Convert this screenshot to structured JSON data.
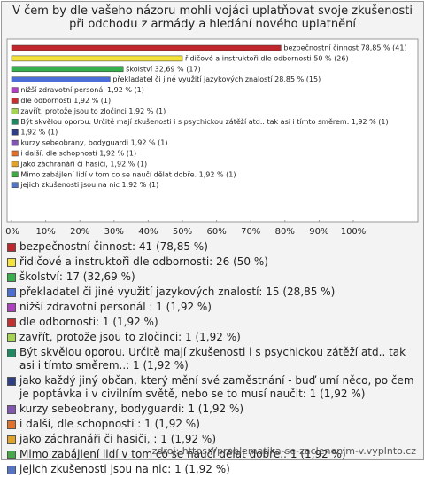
{
  "chart_data": {
    "type": "bar",
    "orientation": "horizontal",
    "title": "V čem by dle vašeho názoru mohli vojáci uplatňovat svoje zkušenosti při odchodu z armády a hledání nového uplatnění",
    "values": [
      78.85,
      50,
      32.69,
      28.85,
      1.92,
      1.92,
      1.92,
      1.92,
      1.92,
      1.92,
      1.92,
      1.92,
      1.92,
      1.92
    ],
    "value_labels": [
      "bezpečnostní činnost 78,85 % (41)",
      "řidičové a instruktoři dle odbornosti 50 % (26)",
      "školství 32,69 % (17)",
      "překladatel či jiné využití jazykových znalostí 28,85 % (15)",
      "nižší zdravotní personál  1,92 % (1)",
      "dle odbornosti 1,92 % (1)",
      "zavřít, protože jsou to zločinci 1,92 % (1)",
      "Být skvělou oporou. Určitě mají zkušenosti i s psychickou zátěží atd.. tak asi i tímto směrem. 1,92 % (1)",
      "1,92 % (1)",
      "kurzy sebeobrany, bodyguardi 1,92 % (1)",
      "i další, dle schopností  1,92 % (1)",
      "jako záchranáři či hasiči,  1,92 % (1)",
      "Mimo  zabájlení lidí   v  tom   co se naučí  dělat  dobře. 1,92 % (1)",
      "jejich zkušenosti jsou na nic 1,92 % (1)"
    ],
    "colors": [
      "#c0272d",
      "#f2e23a",
      "#36b04c",
      "#4a6ed6",
      "#b03fc4",
      "#c23030",
      "#a4d452",
      "#1f8a62",
      "#2f3f86",
      "#8254b4",
      "#e0702a",
      "#e3a22a",
      "#44a846",
      "#5474c6"
    ],
    "legend": [
      "bezpečnostní činnost: 41 (78,85 %)",
      "řidičové a instruktoři dle odbornosti: 26 (50 %)",
      "školství: 17 (32,69 %)",
      "překladatel či jiné využití jazykových znalostí: 15 (28,85 %)",
      "nižší zdravotní personál : 1 (1,92 %)",
      "dle odbornosti: 1 (1,92 %)",
      "zavřít, protože jsou to zločinci: 1 (1,92 %)",
      "Být skvělou oporou. Určitě mají zkušenosti i s psychickou zátěží atd.. tak asi i tímto směrem..: 1 (1,92 %)",
      "jako každý jiný občan, který mění své zaměstnání - buď umí něco, po čem je poptávka i v civilním světě, nebo se to musí naučit: 1 (1,92 %)",
      "kurzy sebeobrany, bodyguardi: 1 (1,92 %)",
      "i další, dle schopností : 1 (1,92 %)",
      "jako záchranáři či hasiči, : 1 (1,92 %)",
      "Mimo  zabájlení lidí   v  tom   co se naučí  dělat  dobře.: 1 (1,92 %)",
      "jejich zkušenosti jsou na nic: 1 (1,92 %)"
    ],
    "xlim": [
      0,
      100
    ],
    "xticks": [
      {
        "value": 0,
        "label": "0%"
      },
      {
        "value": 10,
        "label": "10%"
      },
      {
        "value": 20,
        "label": "20%"
      },
      {
        "value": 30,
        "label": "30%"
      },
      {
        "value": 40,
        "label": "40%"
      },
      {
        "value": 50,
        "label": "50%"
      },
      {
        "value": 60,
        "label": "60%"
      },
      {
        "value": 70,
        "label": "70%"
      },
      {
        "value": 80,
        "label": "80%"
      },
      {
        "value": 90,
        "label": "90%"
      },
      {
        "value": 100,
        "label": "100%"
      }
    ],
    "source": "zdroj: https://problematika-se-zaclenenim-v.vyplnto.cz"
  }
}
